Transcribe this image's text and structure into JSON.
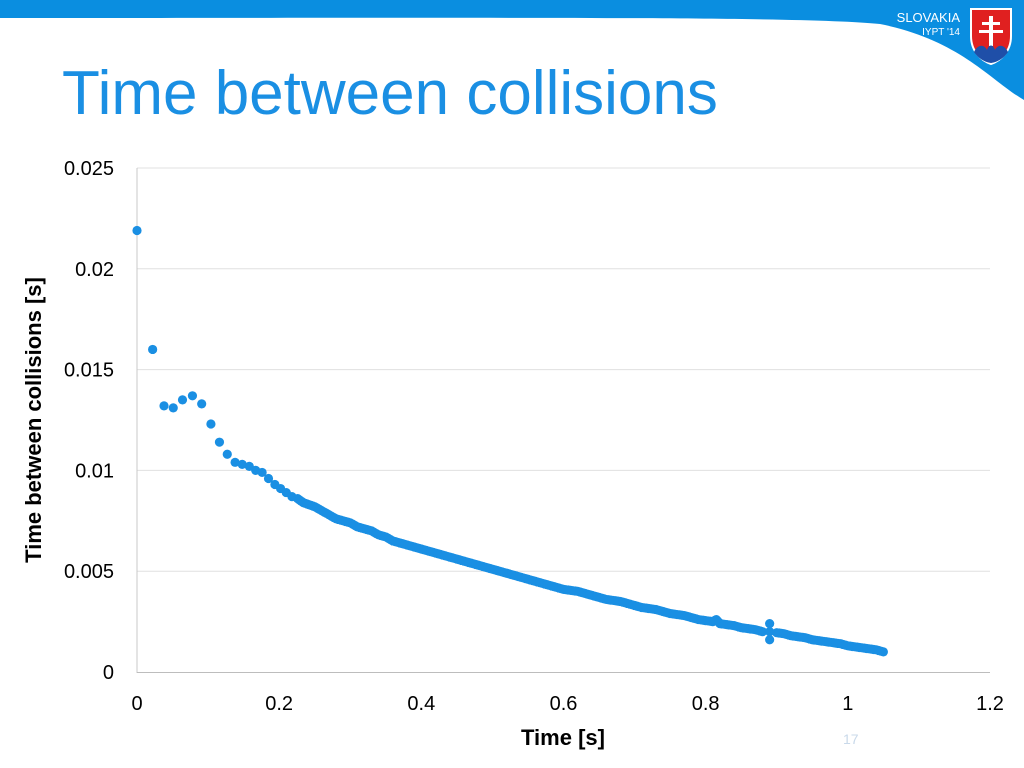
{
  "header": {
    "country": "SLOVAKIA",
    "event": "IYPT '14",
    "accent_color": "#0a8ee0",
    "crest_icon": "slovak-coat-of-arms-icon"
  },
  "slide": {
    "title": "Time between collisions",
    "title_color": "#1a8fe3",
    "page_number": "17"
  },
  "chart_data": {
    "type": "scatter",
    "xlabel": "Time [s]",
    "ylabel": "Time between collisions [s]",
    "xlim": [
      0,
      1.2
    ],
    "ylim": [
      0,
      0.025
    ],
    "xticks": [
      "0",
      "0.2",
      "0.4",
      "0.6",
      "0.8",
      "1",
      "1.2"
    ],
    "yticks": [
      "0",
      "0.005",
      "0.01",
      "0.015",
      "0.02",
      "0.025"
    ],
    "grid": "horizontal",
    "marker_color": "#1a8fe3",
    "series": [
      {
        "x": [
          0,
          0.022,
          0.038,
          0.051,
          0.064,
          0.078,
          0.091,
          0.104,
          0.116,
          0.127,
          0.138,
          0.148,
          0.158,
          0.167,
          0.176,
          0.185,
          0.194,
          0.202,
          0.21,
          0.218,
          0.226,
          0.234,
          0.242,
          0.25,
          0.26,
          0.27,
          0.28,
          0.29,
          0.3,
          0.31,
          0.32,
          0.33,
          0.34,
          0.35,
          0.36,
          0.37,
          0.38,
          0.39,
          0.4,
          0.41,
          0.42,
          0.43,
          0.44,
          0.45,
          0.46,
          0.47,
          0.48,
          0.49,
          0.5,
          0.51,
          0.52,
          0.53,
          0.54,
          0.55,
          0.56,
          0.57,
          0.58,
          0.59,
          0.6,
          0.61,
          0.62,
          0.63,
          0.64,
          0.65,
          0.66,
          0.67,
          0.68,
          0.69,
          0.7,
          0.71,
          0.72,
          0.73,
          0.74,
          0.75,
          0.76,
          0.77,
          0.78,
          0.79,
          0.8,
          0.81,
          0.815,
          0.82,
          0.83,
          0.84,
          0.85,
          0.86,
          0.87,
          0.88,
          0.89,
          0.89,
          0.89,
          0.9,
          0.91,
          0.92,
          0.93,
          0.94,
          0.95,
          0.96,
          0.97,
          0.98,
          0.99,
          1.0,
          1.01,
          1.02,
          1.03,
          1.04,
          1.05
        ],
        "y": [
          0.0219,
          0.016,
          0.0132,
          0.0131,
          0.0135,
          0.0137,
          0.0133,
          0.0123,
          0.0114,
          0.0108,
          0.0104,
          0.0103,
          0.0102,
          0.01,
          0.0099,
          0.0096,
          0.0093,
          0.0091,
          0.0089,
          0.0087,
          0.0086,
          0.0084,
          0.0083,
          0.0082,
          0.008,
          0.0078,
          0.0076,
          0.0075,
          0.0074,
          0.0072,
          0.0071,
          0.007,
          0.0068,
          0.0067,
          0.0065,
          0.0064,
          0.0063,
          0.0062,
          0.0061,
          0.006,
          0.0059,
          0.0058,
          0.0057,
          0.0056,
          0.0055,
          0.0054,
          0.0053,
          0.0052,
          0.0051,
          0.005,
          0.0049,
          0.0048,
          0.0047,
          0.0046,
          0.0045,
          0.0044,
          0.0043,
          0.0042,
          0.0041,
          0.00405,
          0.004,
          0.0039,
          0.0038,
          0.0037,
          0.0036,
          0.00355,
          0.0035,
          0.0034,
          0.0033,
          0.0032,
          0.00315,
          0.0031,
          0.003,
          0.0029,
          0.00285,
          0.0028,
          0.0027,
          0.0026,
          0.00255,
          0.0025,
          0.0026,
          0.0024,
          0.00235,
          0.0023,
          0.0022,
          0.00215,
          0.0021,
          0.002,
          0.0024,
          0.0016,
          0.002,
          0.00195,
          0.0019,
          0.0018,
          0.00175,
          0.0017,
          0.0016,
          0.00155,
          0.0015,
          0.00145,
          0.0014,
          0.0013,
          0.00125,
          0.0012,
          0.00115,
          0.0011,
          0.001
        ]
      }
    ]
  }
}
